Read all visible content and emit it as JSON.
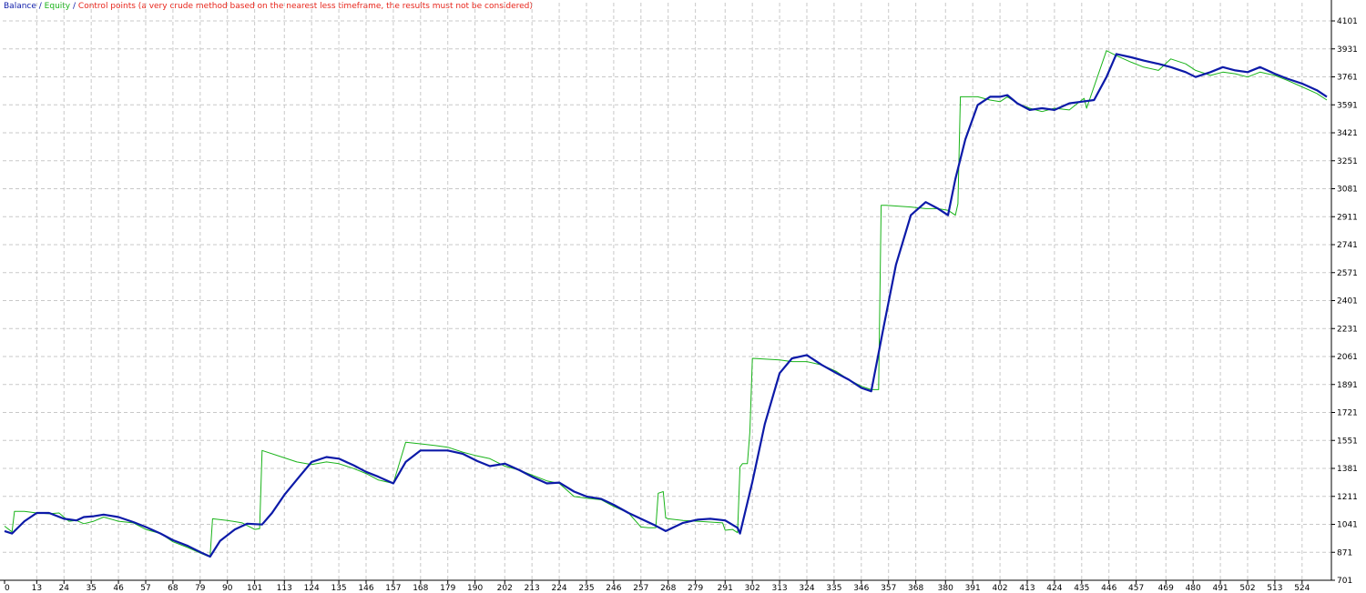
{
  "legend": {
    "balance": "Balance",
    "equity": "Equity",
    "control": "Control points (a very crude method based on the nearest less timeframe, the results must not be considered)",
    "separator": " / "
  },
  "colors": {
    "balance": "#0c1aa8",
    "equity": "#19b319",
    "control": "#e8251b",
    "grid": "#c8c8c8",
    "axis": "#000000",
    "background": "#ffffff"
  },
  "chart_data": {
    "type": "line",
    "grid": true,
    "legend_position": "top-left",
    "y_axis_position": "right",
    "xlim": [
      0,
      534
    ],
    "ylim": [
      701,
      4101
    ],
    "x_ticks": [
      "0",
      "13",
      "24",
      "35",
      "46",
      "57",
      "68",
      "79",
      "90",
      "101",
      "113",
      "124",
      "135",
      "146",
      "157",
      "168",
      "179",
      "190",
      "202",
      "213",
      "224",
      "235",
      "246",
      "257",
      "268",
      "279",
      "291",
      "302",
      "313",
      "324",
      "335",
      "346",
      "357",
      "368",
      "380",
      "391",
      "402",
      "413",
      "424",
      "435",
      "446",
      "457",
      "469",
      "480",
      "491",
      "502",
      "513",
      "524"
    ],
    "y_ticks": [
      "701",
      "871",
      "1041",
      "1211",
      "1381",
      "1551",
      "1721",
      "1891",
      "2061",
      "2231",
      "2401",
      "2571",
      "2741",
      "2911",
      "3081",
      "3251",
      "3421",
      "3591",
      "3761",
      "3931",
      "4101"
    ],
    "series": [
      {
        "name": "Balance",
        "color": "#0c1aa8",
        "x": [
          0,
          3,
          8,
          13,
          18,
          24,
          29,
          32,
          36,
          40,
          46,
          52,
          57,
          63,
          68,
          74,
          80,
          83,
          87,
          93,
          98,
          104,
          108,
          113,
          119,
          124,
          130,
          135,
          141,
          146,
          151,
          157,
          162,
          168,
          174,
          179,
          185,
          191,
          196,
          202,
          208,
          213,
          219,
          224,
          230,
          235,
          241,
          246,
          252,
          257,
          262,
          267,
          274,
          280,
          285,
          291,
          296,
          297,
          302,
          307,
          313,
          318,
          324,
          330,
          336,
          341,
          346,
          350,
          355,
          360,
          366,
          372,
          377,
          381,
          384,
          388,
          393,
          398,
          402,
          405,
          409,
          414,
          419,
          424,
          430,
          435,
          440,
          445,
          449,
          455,
          460,
          466,
          471,
          477,
          481,
          487,
          492,
          497,
          502,
          507,
          513,
          518,
          524,
          530,
          534
        ],
        "values": [
          1000,
          985,
          1060,
          1110,
          1110,
          1075,
          1065,
          1085,
          1090,
          1100,
          1085,
          1055,
          1025,
          985,
          945,
          910,
          865,
          845,
          940,
          1010,
          1045,
          1040,
          1110,
          1220,
          1330,
          1420,
          1450,
          1440,
          1400,
          1360,
          1330,
          1290,
          1420,
          1490,
          1490,
          1490,
          1470,
          1425,
          1395,
          1410,
          1370,
          1330,
          1290,
          1295,
          1240,
          1210,
          1195,
          1160,
          1110,
          1075,
          1040,
          1000,
          1050,
          1070,
          1075,
          1065,
          1020,
          985,
          1300,
          1650,
          1960,
          2050,
          2070,
          2010,
          1960,
          1920,
          1870,
          1850,
          2240,
          2620,
          2920,
          3000,
          2960,
          2920,
          3140,
          3380,
          3590,
          3640,
          3640,
          3650,
          3600,
          3560,
          3570,
          3560,
          3600,
          3610,
          3620,
          3760,
          3900,
          3880,
          3860,
          3840,
          3820,
          3790,
          3760,
          3790,
          3820,
          3800,
          3790,
          3820,
          3780,
          3750,
          3720,
          3680,
          3640
        ]
      },
      {
        "name": "Equity",
        "color": "#19b319",
        "x": [
          0,
          3,
          4,
          8,
          13,
          18,
          22,
          26,
          29,
          32,
          36,
          40,
          46,
          52,
          57,
          63,
          68,
          74,
          80,
          82,
          83,
          84,
          90,
          96,
          101,
          103,
          104,
          113,
          118,
          124,
          130,
          135,
          141,
          146,
          151,
          157,
          158,
          162,
          168,
          174,
          179,
          185,
          190,
          196,
          202,
          208,
          213,
          219,
          224,
          230,
          235,
          241,
          246,
          252,
          257,
          260,
          263,
          264,
          266,
          267,
          268,
          274,
          280,
          285,
          290,
          291,
          294,
          296,
          297,
          298,
          300,
          301,
          302,
          313,
          318,
          324,
          330,
          336,
          341,
          346,
          350,
          353,
          354,
          356,
          366,
          372,
          377,
          381,
          384,
          385,
          386,
          393,
          398,
          402,
          405,
          409,
          414,
          419,
          424,
          430,
          435,
          436,
          437,
          445,
          449,
          455,
          460,
          466,
          471,
          477,
          481,
          487,
          492,
          497,
          502,
          507,
          513,
          518,
          524,
          530,
          534
        ],
        "values": [
          1030,
          995,
          1120,
          1120,
          1110,
          1105,
          1110,
          1060,
          1065,
          1045,
          1060,
          1085,
          1060,
          1050,
          1010,
          985,
          935,
          900,
          860,
          848,
          845,
          1075,
          1065,
          1050,
          1010,
          1015,
          1490,
          1445,
          1420,
          1405,
          1420,
          1410,
          1380,
          1350,
          1310,
          1290,
          1340,
          1540,
          1530,
          1520,
          1510,
          1480,
          1460,
          1440,
          1395,
          1370,
          1340,
          1305,
          1290,
          1210,
          1200,
          1190,
          1150,
          1110,
          1025,
          1020,
          1020,
          1230,
          1240,
          1080,
          1075,
          1065,
          1060,
          1055,
          1050,
          1005,
          1010,
          990,
          1390,
          1410,
          1410,
          1600,
          2050,
          2040,
          2030,
          2030,
          2010,
          1970,
          1920,
          1880,
          1860,
          1860,
          2980,
          2980,
          2970,
          2960,
          2960,
          2950,
          2920,
          2990,
          3640,
          3640,
          3620,
          3610,
          3640,
          3600,
          3570,
          3550,
          3570,
          3560,
          3620,
          3630,
          3570,
          3920,
          3890,
          3850,
          3820,
          3800,
          3870,
          3840,
          3800,
          3770,
          3790,
          3780,
          3760,
          3790,
          3770,
          3740,
          3700,
          3660,
          3620
        ]
      }
    ]
  }
}
